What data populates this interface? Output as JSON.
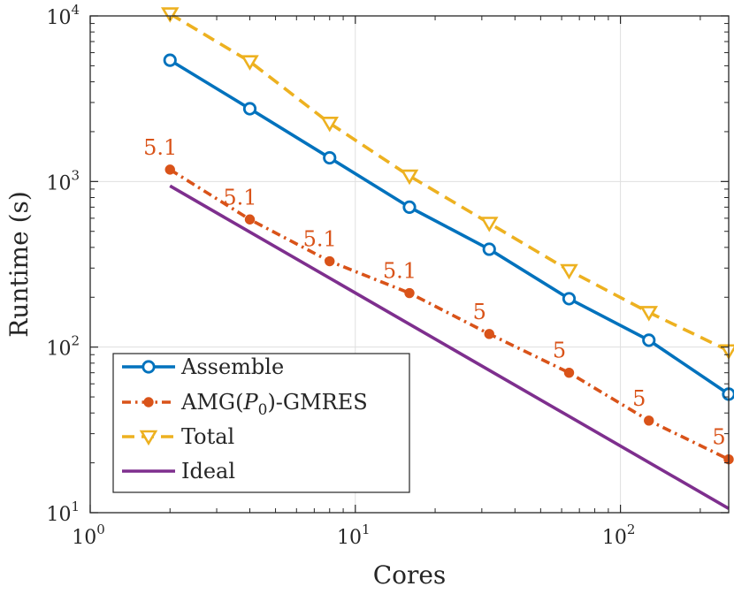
{
  "chart_data": {
    "type": "line",
    "title": "",
    "xlabel": "Cores",
    "ylabel": "Runtime (s)",
    "xscale": "log",
    "yscale": "log",
    "xlim": [
      1,
      256
    ],
    "ylim": [
      10,
      10000
    ],
    "grid": true,
    "legend_position": "bottom-left",
    "x_ticks": [
      {
        "value": 1,
        "base": "10",
        "exp": "0"
      },
      {
        "value": 10,
        "base": "10",
        "exp": "1"
      },
      {
        "value": 100,
        "base": "10",
        "exp": "2"
      }
    ],
    "y_ticks": [
      {
        "value": 10,
        "base": "10",
        "exp": "1"
      },
      {
        "value": 100,
        "base": "10",
        "exp": "2"
      },
      {
        "value": 1000,
        "base": "10",
        "exp": "3"
      },
      {
        "value": 10000,
        "base": "10",
        "exp": "4"
      }
    ],
    "series": [
      {
        "name": "Assemble",
        "color": "#0072bd",
        "dash": "solid",
        "marker": "circle",
        "x": [
          2,
          4,
          8,
          16,
          32,
          64,
          128,
          256
        ],
        "y": [
          5400,
          2750,
          1390,
          700,
          390,
          196,
          110,
          52
        ]
      },
      {
        "name": "AMG(P0)-GMRES",
        "legend_parts": [
          "AMG(",
          "P",
          "0",
          ")-GMRES"
        ],
        "color": "#d95319",
        "dash": "dashdot",
        "marker": "dot",
        "x": [
          2,
          4,
          8,
          16,
          32,
          64,
          128,
          256
        ],
        "y": [
          1180,
          590,
          330,
          212,
          120,
          70,
          36,
          21
        ],
        "labels": [
          "5.1",
          "5.1",
          "5.1",
          "5.1",
          "5",
          "5",
          "5",
          "5"
        ]
      },
      {
        "name": "Total",
        "color": "#edb120",
        "dash": "dashed",
        "marker": "triangle-down",
        "x": [
          2,
          4,
          8,
          16,
          32,
          64,
          128,
          256
        ],
        "y": [
          10300,
          5300,
          2250,
          1080,
          560,
          290,
          162,
          95
        ]
      },
      {
        "name": "Ideal",
        "color": "#7e2f8e",
        "dash": "solid",
        "marker": "none",
        "x": [
          2,
          256
        ],
        "y": [
          940,
          10.6
        ]
      }
    ]
  }
}
